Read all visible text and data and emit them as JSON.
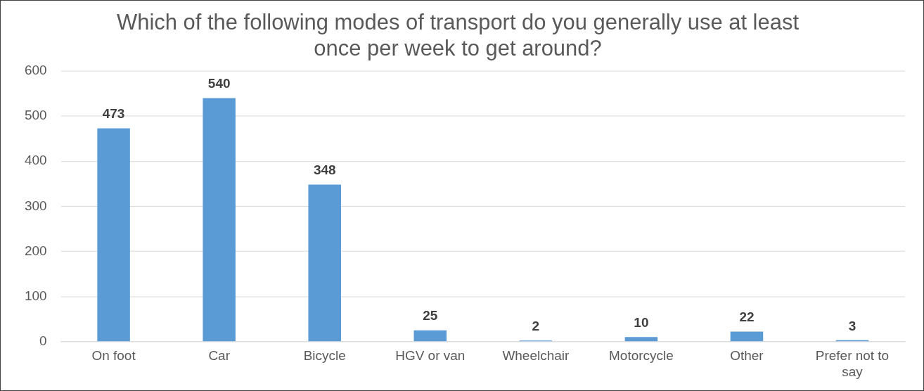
{
  "chart_data": {
    "type": "bar",
    "title": "Which of the following modes of transport do you generally use at least once per week to get around?",
    "categories": [
      "On foot",
      "Car",
      "Bicycle",
      "HGV or van",
      "Wheelchair",
      "Motorcycle",
      "Other",
      "Prefer not to say"
    ],
    "values": [
      473,
      540,
      348,
      25,
      2,
      10,
      22,
      3
    ],
    "color": "#5b9bd5",
    "ylim": [
      0,
      600
    ],
    "yticks": [
      0,
      100,
      200,
      300,
      400,
      500,
      600
    ],
    "grid": "y",
    "data_labels": true
  }
}
